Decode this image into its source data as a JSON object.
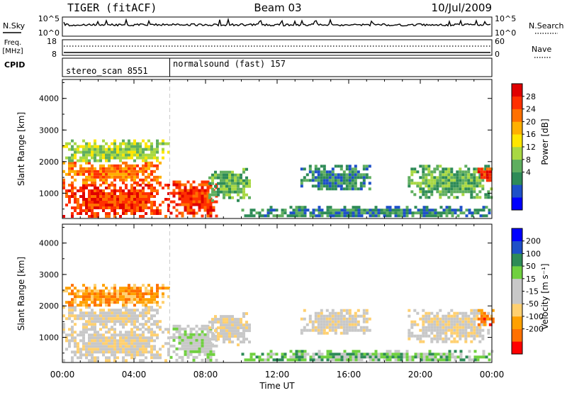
{
  "header": {
    "radar": "TIGER (fitACF)",
    "beam": "Beam 03",
    "date": "10/Jul/2009"
  },
  "nsky_panel": {
    "left_label": "N.Sky",
    "right_label": "N.Search",
    "left_ticks": [
      "10^5",
      "10^0"
    ],
    "right_ticks": [
      "10^5",
      "10^0"
    ]
  },
  "freq_panel": {
    "left_label_line1": "Freq.",
    "left_label_line2": "[MHz]",
    "right_label": "Nave",
    "left_ticks": [
      "18",
      "8"
    ],
    "right_ticks": [
      "60",
      "0"
    ]
  },
  "cpid": {
    "label": "CPID",
    "segments": [
      {
        "name": "stereo_scan 8551",
        "start_hour": 0
      },
      {
        "name": "normalsound (fast) 157",
        "start_hour": 6
      }
    ]
  },
  "chart_data": [
    {
      "type": "heatmap",
      "title": "",
      "xlabel": "Time UT",
      "ylabel": "Slant Range [km]",
      "x_ticks": [
        "00:00",
        "04:00",
        "08:00",
        "12:00",
        "16:00",
        "20:00",
        "00:00"
      ],
      "xlim_hours": [
        0,
        24
      ],
      "ylim_km": [
        200,
        4600
      ],
      "y_ticks": [
        1000,
        2000,
        3000,
        4000
      ],
      "colorbar": {
        "label": "Power [dB]",
        "ticks": [
          "28",
          "24",
          "20",
          "16",
          "12",
          "8",
          "4"
        ],
        "colors": [
          "#0000ff",
          "#1e50c8",
          "#2e8b57",
          "#5fae5f",
          "#a8d843",
          "#ffe600",
          "#ffb000",
          "#ff7000",
          "#ff3000",
          "#e00000"
        ]
      },
      "echo_regions": [
        {
          "t0": 0.0,
          "t1": 6.0,
          "r0": 300,
          "r1": 1300,
          "level": 8
        },
        {
          "t0": 0.0,
          "t1": 5.5,
          "r0": 1300,
          "r1": 2000,
          "level": 7
        },
        {
          "t0": 0.0,
          "t1": 6.0,
          "r0": 2000,
          "r1": 2700,
          "level": 4
        },
        {
          "t0": 6.0,
          "t1": 8.6,
          "r0": 300,
          "r1": 1400,
          "level": 8
        },
        {
          "t0": 8.0,
          "t1": 10.4,
          "r0": 800,
          "r1": 1800,
          "level": 3
        },
        {
          "t0": 10.0,
          "t1": 24.0,
          "r0": 250,
          "r1": 600,
          "level": 2
        },
        {
          "t0": 13.3,
          "t1": 17.2,
          "r0": 1100,
          "r1": 1900,
          "level": 2
        },
        {
          "t0": 19.3,
          "t1": 24.0,
          "r0": 900,
          "r1": 1900,
          "level": 3
        },
        {
          "t0": 23.2,
          "t1": 24.0,
          "r0": 1400,
          "r1": 1900,
          "level": 8
        }
      ]
    },
    {
      "type": "heatmap",
      "title": "",
      "xlabel": "Time UT",
      "ylabel": "Slant Range [km]",
      "x_ticks": [
        "00:00",
        "04:00",
        "08:00",
        "12:00",
        "16:00",
        "20:00",
        "00:00"
      ],
      "xlim_hours": [
        0,
        24
      ],
      "ylim_km": [
        200,
        4600
      ],
      "y_ticks": [
        1000,
        2000,
        3000,
        4000
      ],
      "colorbar": {
        "label": "Velocity [m s⁻¹]",
        "ticks": [
          "200",
          "100",
          "50",
          "15",
          "-15",
          "-50",
          "-100",
          "-200"
        ],
        "colors": [
          "#ff0000",
          "#ff7000",
          "#ffa000",
          "#ffd070",
          "#c8c8c8",
          "#c8c8c8",
          "#70d040",
          "#2e8b57",
          "#1e50c8",
          "#0000ff"
        ]
      },
      "echo_regions": [
        {
          "t0": 0.0,
          "t1": 6.0,
          "r0": 300,
          "r1": 1300,
          "level": 4
        },
        {
          "t0": 0.0,
          "t1": 5.5,
          "r0": 1300,
          "r1": 2000,
          "level": 4
        },
        {
          "t0": 0.0,
          "t1": 6.0,
          "r0": 2000,
          "r1": 2700,
          "level": 2
        },
        {
          "t0": 6.0,
          "t1": 8.6,
          "r0": 300,
          "r1": 1400,
          "level": 5
        },
        {
          "t0": 8.0,
          "t1": 10.4,
          "r0": 800,
          "r1": 1800,
          "level": 4
        },
        {
          "t0": 10.0,
          "t1": 24.0,
          "r0": 250,
          "r1": 600,
          "level": 6
        },
        {
          "t0": 13.3,
          "t1": 17.2,
          "r0": 1100,
          "r1": 1900,
          "level": 4
        },
        {
          "t0": 19.3,
          "t1": 24.0,
          "r0": 900,
          "r1": 1900,
          "level": 4
        },
        {
          "t0": 23.2,
          "t1": 24.0,
          "r0": 1400,
          "r1": 1900,
          "level": 1
        }
      ]
    }
  ]
}
